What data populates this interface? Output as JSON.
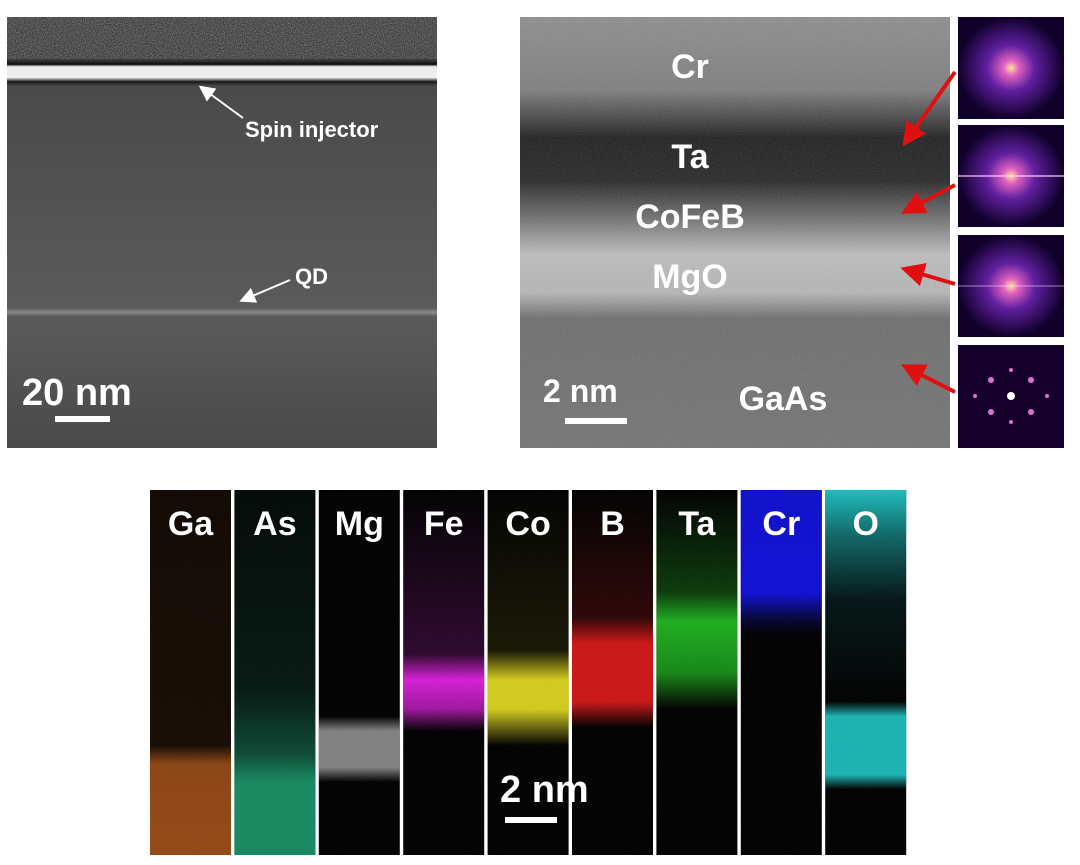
{
  "stem": {
    "labels": [
      "Spin injector",
      "QD"
    ],
    "scale_bar": "20 nm"
  },
  "hrtem": {
    "layers": [
      "Cr",
      "Ta",
      "CoFeB",
      "MgO",
      "GaAs"
    ],
    "scale_bar": "2 nm"
  },
  "eds_maps": {
    "elements": [
      "Ga",
      "As",
      "Mg",
      "Fe",
      "Co",
      "B",
      "Ta",
      "Cr",
      "O"
    ],
    "scale_bar": "2 nm"
  }
}
